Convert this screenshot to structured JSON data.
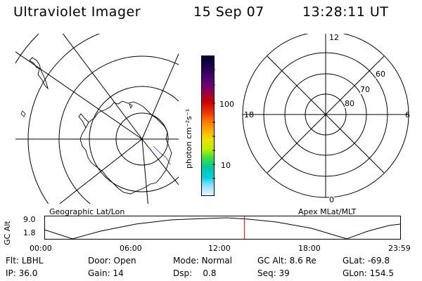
{
  "header": {
    "instrument": "Ultraviolet Imager",
    "date": "15 Sep 07",
    "time": "13:28:11 UT"
  },
  "left_panel": {
    "caption": "Geographic Lat/Lon"
  },
  "right_panel": {
    "caption": "Apex MLat/MLT",
    "mlt_labels": {
      "top": "12",
      "right": "6",
      "bottom": "0",
      "left": "18"
    },
    "mlat_labels": [
      "60",
      "70",
      "80"
    ]
  },
  "colorbar": {
    "unit_label": "photon cm⁻²s⁻¹",
    "tick_labels": [
      "100",
      "10"
    ],
    "scale": "log",
    "colors": [
      "#000033",
      "#1a004d",
      "#3d0066",
      "#6a007a",
      "#9a0040",
      "#cc0000",
      "#e83300",
      "#ff7700",
      "#ffaa00",
      "#f0e000",
      "#b8f000",
      "#40e040",
      "#00c8a0",
      "#00d0e0",
      "#90e0ff",
      "#e8f6ff"
    ]
  },
  "timeline": {
    "y_axis_label": "GC Alt",
    "y_ticks": [
      "9.0",
      "1.8"
    ],
    "x_ticks": [
      "00:00",
      "06:00",
      "12:00",
      "18:00",
      "23:59"
    ],
    "marker_time": "13:28:11",
    "marker_color": "#cc0000"
  },
  "status": {
    "flt": {
      "label": "Flt:",
      "value": "LBHL"
    },
    "ip": {
      "label": "IP:",
      "value": "36.0"
    },
    "door": {
      "label": "Door:",
      "value": "Open"
    },
    "gain": {
      "label": "Gain:",
      "value": "14"
    },
    "mode": {
      "label": "Mode:",
      "value": "Normal"
    },
    "dsp": {
      "label": "Dsp:",
      "value": "0.8"
    },
    "gcalt": {
      "label": "GC Alt:",
      "value": "8.6 Re"
    },
    "seq": {
      "label": "Seq:",
      "value": "39"
    },
    "glat": {
      "label": "GLat:",
      "value": "-69.8"
    },
    "glon": {
      "label": "GLon:",
      "value": "154.5"
    }
  }
}
